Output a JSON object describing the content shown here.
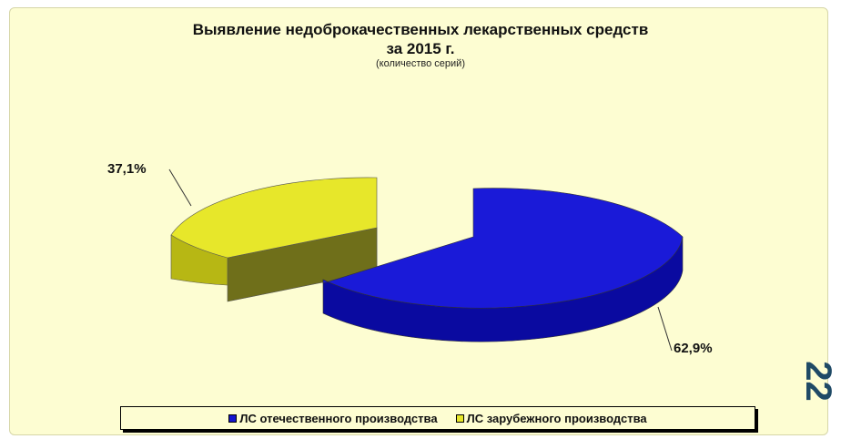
{
  "page_number": "22",
  "colors": {
    "background": "#fdfdd2",
    "domestic": "#1515d0",
    "foreign": "#e7e72a"
  },
  "chart_data": {
    "type": "pie",
    "three_d": true,
    "title": "Выявление недоброкачественных лекарственных средств за 2015 г.",
    "title_lines": [
      "Выявление недоброкачественных лекарственных средств",
      "за 2015 г."
    ],
    "subtitle": "(количество серий)",
    "labels": [
      "ЛС отечественного производства",
      "ЛС зарубежного производства"
    ],
    "values": [
      62.9,
      37.1
    ],
    "value_labels": [
      "62,9%",
      "37,1%"
    ],
    "legend_position": "bottom"
  }
}
